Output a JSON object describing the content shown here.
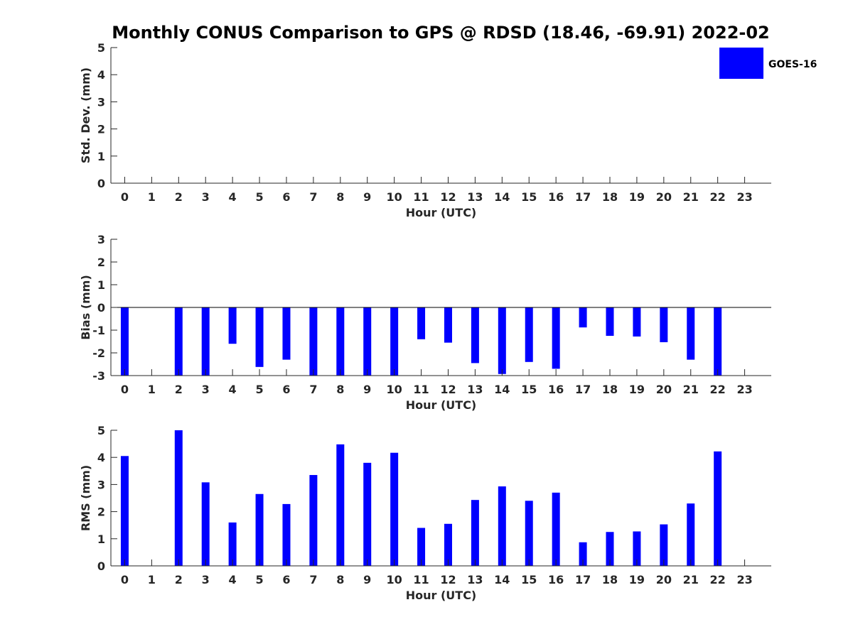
{
  "title": "Monthly CONUS Comparison to GPS @ RDSD (18.46, -69.91) 2022-02",
  "legend": {
    "label": "GOES-16",
    "color": "#0000ff",
    "placement": "top-right"
  },
  "chart_data": [
    {
      "type": "bar",
      "name": "std",
      "ylabel": "Std. Dev. (mm)",
      "xlabel": "Hour (UTC)",
      "ylim": [
        0,
        5
      ],
      "yticks": [
        0,
        1,
        2,
        3,
        4,
        5
      ],
      "categories": [
        "0",
        "1",
        "2",
        "3",
        "4",
        "5",
        "6",
        "7",
        "8",
        "9",
        "10",
        "11",
        "12",
        "13",
        "14",
        "15",
        "16",
        "17",
        "18",
        "19",
        "20",
        "21",
        "22",
        "23"
      ],
      "series": [
        {
          "values": [
            null,
            null,
            null,
            null,
            null,
            null,
            null,
            null,
            null,
            null,
            null,
            null,
            null,
            null,
            null,
            null,
            null,
            null,
            null,
            null,
            null,
            null,
            null,
            null
          ]
        }
      ],
      "zero_line": false
    },
    {
      "type": "bar",
      "name": "bias",
      "ylabel": "Bias (mm)",
      "xlabel": "Hour (UTC)",
      "ylim": [
        -3,
        3
      ],
      "yticks": [
        -3,
        -2,
        -1,
        0,
        1,
        2,
        3
      ],
      "categories": [
        "0",
        "1",
        "2",
        "3",
        "4",
        "5",
        "6",
        "7",
        "8",
        "9",
        "10",
        "11",
        "12",
        "13",
        "14",
        "15",
        "16",
        "17",
        "18",
        "19",
        "20",
        "21",
        "22",
        "23"
      ],
      "series": [
        {
          "values": [
            -3.0,
            null,
            -3.0,
            -3.0,
            -1.6,
            -2.62,
            -2.3,
            -3.0,
            -3.0,
            -3.0,
            -3.0,
            -1.4,
            -1.55,
            -2.45,
            -2.93,
            -2.4,
            -2.7,
            -0.88,
            -1.25,
            -1.28,
            -1.53,
            -2.3,
            -3.0,
            null
          ]
        }
      ],
      "zero_line": true
    },
    {
      "type": "bar",
      "name": "rms",
      "ylabel": "RMS (mm)",
      "xlabel": "Hour (UTC)",
      "ylim": [
        0,
        5
      ],
      "yticks": [
        0,
        1,
        2,
        3,
        4,
        5
      ],
      "categories": [
        "0",
        "1",
        "2",
        "3",
        "4",
        "5",
        "6",
        "7",
        "8",
        "9",
        "10",
        "11",
        "12",
        "13",
        "14",
        "15",
        "16",
        "17",
        "18",
        "19",
        "20",
        "21",
        "22",
        "23"
      ],
      "series": [
        {
          "values": [
            4.05,
            null,
            5.0,
            3.08,
            1.6,
            2.65,
            2.28,
            3.35,
            4.48,
            3.8,
            4.17,
            1.4,
            1.55,
            2.43,
            2.93,
            2.4,
            2.7,
            0.87,
            1.25,
            1.27,
            1.53,
            2.3,
            4.22,
            null
          ]
        }
      ],
      "zero_line": false
    }
  ]
}
